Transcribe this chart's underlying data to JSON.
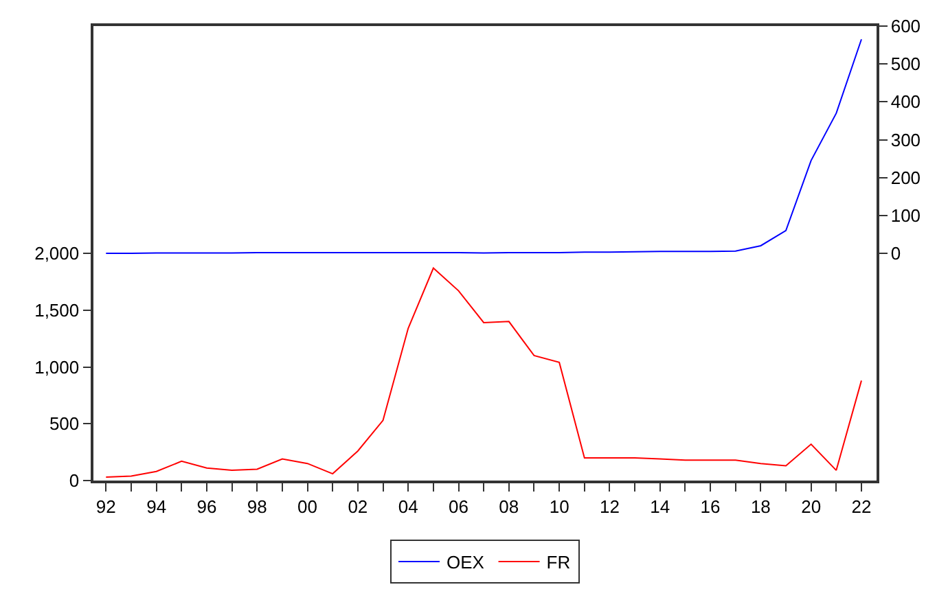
{
  "chart_data": {
    "type": "line",
    "x": [
      1992,
      1993,
      1994,
      1995,
      1996,
      1997,
      1998,
      1999,
      2000,
      2001,
      2002,
      2003,
      2004,
      2005,
      2006,
      2007,
      2008,
      2009,
      2010,
      2011,
      2012,
      2013,
      2014,
      2015,
      2016,
      2017,
      2018,
      2019,
      2020,
      2021,
      2022
    ],
    "series": [
      {
        "name": "OEX",
        "color": "#0000ff",
        "axis": "y2",
        "values": [
          0,
          0,
          1,
          1,
          1,
          1,
          2,
          2,
          2,
          2,
          2,
          2,
          2,
          2,
          2,
          1,
          2,
          2,
          2,
          3,
          3,
          4,
          5,
          5,
          5,
          6,
          20,
          60,
          245,
          370,
          565
        ]
      },
      {
        "name": "FR",
        "color": "#ff0000",
        "values": [
          30,
          40,
          80,
          170,
          110,
          90,
          100,
          190,
          150,
          60,
          260,
          530,
          1340,
          1870,
          1670,
          1390,
          1400,
          1100,
          1040,
          200,
          200,
          200,
          190,
          180,
          180,
          180,
          150,
          130,
          320,
          90,
          880
        ]
      }
    ],
    "xlim": [
      1991.5,
      2022.6
    ],
    "xticks": [
      {
        "value": 1992,
        "label": "92"
      },
      {
        "value": 1993,
        "label": null
      },
      {
        "value": 1994,
        "label": "94"
      },
      {
        "value": 1995,
        "label": null
      },
      {
        "value": 1996,
        "label": "96"
      },
      {
        "value": 1997,
        "label": null
      },
      {
        "value": 1998,
        "label": "98"
      },
      {
        "value": 1999,
        "label": null
      },
      {
        "value": 2000,
        "label": "00"
      },
      {
        "value": 2001,
        "label": null
      },
      {
        "value": 2002,
        "label": "02"
      },
      {
        "value": 2003,
        "label": null
      },
      {
        "value": 2004,
        "label": "04"
      },
      {
        "value": 2005,
        "label": null
      },
      {
        "value": 2006,
        "label": "06"
      },
      {
        "value": 2007,
        "label": null
      },
      {
        "value": 2008,
        "label": "08"
      },
      {
        "value": 2009,
        "label": null
      },
      {
        "value": 2010,
        "label": "10"
      },
      {
        "value": 2011,
        "label": null
      },
      {
        "value": 2012,
        "label": "12"
      },
      {
        "value": 2013,
        "label": null
      },
      {
        "value": 2014,
        "label": "14"
      },
      {
        "value": 2015,
        "label": null
      },
      {
        "value": 2016,
        "label": "16"
      },
      {
        "value": 2017,
        "label": null
      },
      {
        "value": 2018,
        "label": "18"
      },
      {
        "value": 2019,
        "label": null
      },
      {
        "value": 2020,
        "label": "20"
      },
      {
        "value": 2021,
        "label": null
      },
      {
        "value": 2022,
        "label": "22"
      }
    ],
    "ylim": [
      0,
      4000
    ],
    "yticks": [
      0,
      {
        "value": 500,
        "label": "500"
      },
      {
        "value": 1000,
        "label": "1,000"
      },
      {
        "value": 1500,
        "label": "1,500"
      },
      {
        "value": 2000,
        "label": "2,000"
      }
    ],
    "y2lim": [
      -600,
      600
    ],
    "y2ticks": [
      0,
      100,
      200,
      300,
      400,
      500,
      600
    ],
    "legend": "bottom",
    "marker": "none",
    "line_style": "solid"
  }
}
